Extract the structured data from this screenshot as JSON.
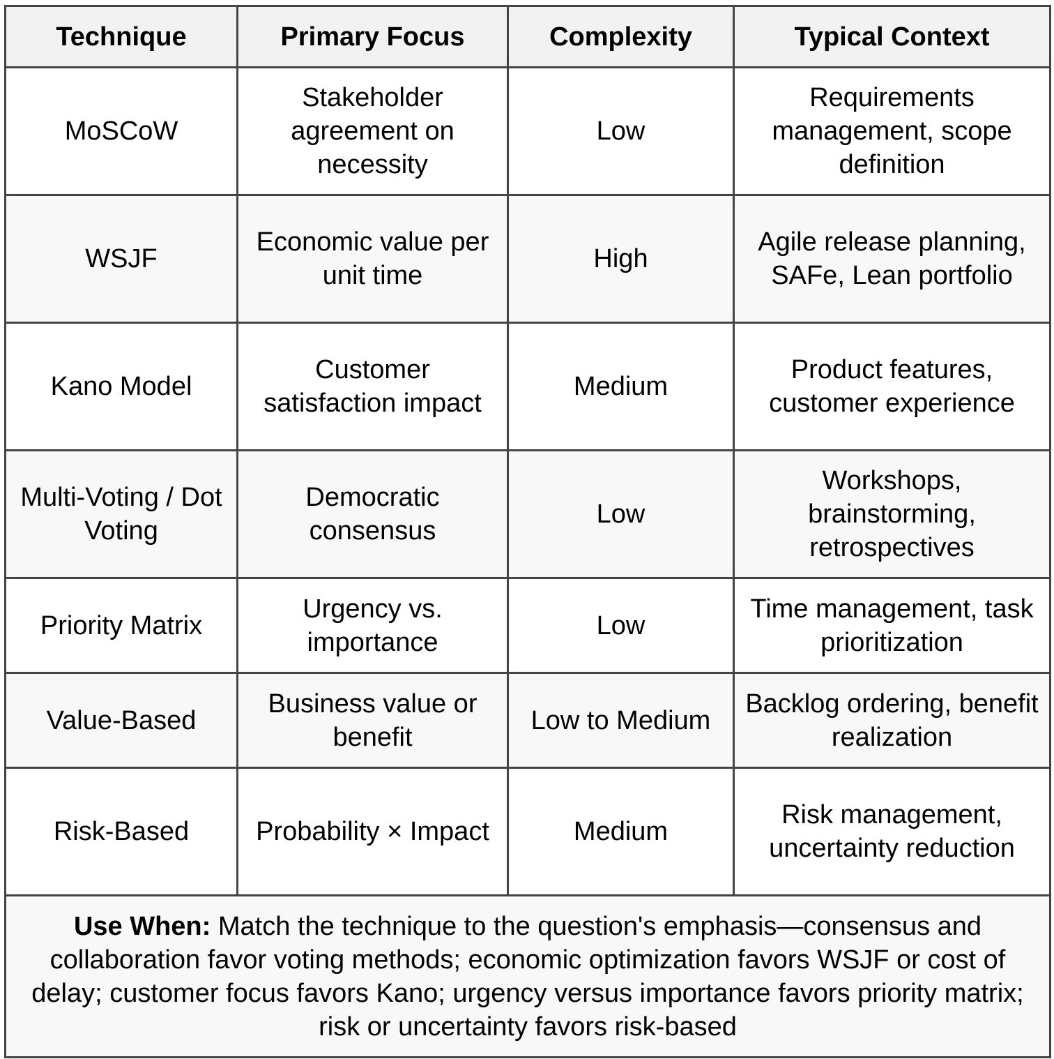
{
  "headers": [
    "Technique",
    "Primary Focus",
    "Complexity",
    "Typical Context"
  ],
  "rows": [
    {
      "technique": "MoSCoW",
      "focus": "Stakeholder agreement on necessity",
      "complexity": "Low",
      "context": "Requirements management, scope definition"
    },
    {
      "technique": "WSJF",
      "focus": "Economic value per unit time",
      "complexity": "High",
      "context": "Agile release planning, SAFe, Lean portfolio"
    },
    {
      "technique": "Kano Model",
      "focus": "Customer satisfaction impact",
      "complexity": "Medium",
      "context": "Product features, customer experience"
    },
    {
      "technique": "Multi-Voting / Dot Voting",
      "focus": "Democratic consensus",
      "complexity": "Low",
      "context": "Workshops, brainstorming, retrospectives"
    },
    {
      "technique": "Priority Matrix",
      "focus": "Urgency vs. importance",
      "complexity": "Low",
      "context": "Time management, task prioritization"
    },
    {
      "technique": "Value-Based",
      "focus": "Business value or benefit",
      "complexity": "Low to Medium",
      "context": "Backlog ordering, benefit realization"
    },
    {
      "technique": "Risk-Based",
      "focus": "Probability × Impact",
      "complexity": "Medium",
      "context": "Risk management, uncertainty reduction"
    }
  ],
  "footer": {
    "label": "Use When:",
    "text": " Match the technique to the question's emphasis—consensus and collaboration favor voting methods; economic optimization favors WSJF or cost of delay; customer focus favors Kano; urgency versus importance favors priority matrix; risk or uncertainty favors risk-based"
  }
}
